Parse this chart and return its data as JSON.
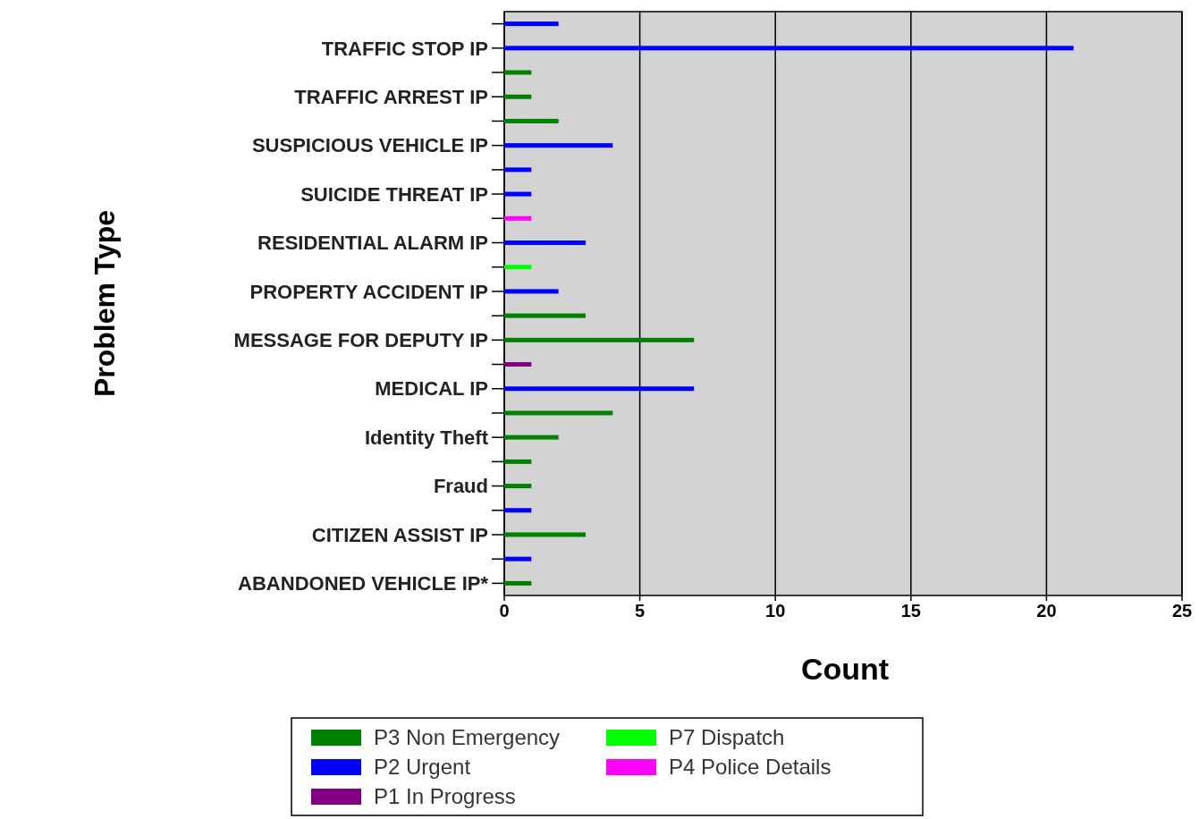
{
  "chart_data": {
    "type": "bar",
    "orientation": "horizontal",
    "xlabel": "Count",
    "ylabel": "Problem Type",
    "categories": [
      null,
      "TRAFFIC STOP IP",
      null,
      "TRAFFIC ARREST IP",
      null,
      "SUSPICIOUS VEHICLE IP",
      null,
      "SUICIDE THREAT IP",
      null,
      "RESIDENTIAL ALARM IP",
      null,
      "PROPERTY ACCIDENT IP",
      null,
      "MESSAGE FOR DEPUTY IP",
      null,
      "MEDICAL IP",
      null,
      "Identity Theft",
      null,
      "Fraud",
      null,
      "CITIZEN ASSIST IP",
      null,
      "ABANDONED VEHICLE IP*"
    ],
    "series": [
      {
        "name": "P3 Non Emergency",
        "color": "#008000",
        "values": [
          null,
          null,
          1,
          1,
          2,
          null,
          null,
          null,
          null,
          null,
          null,
          null,
          3,
          7,
          null,
          null,
          4,
          2,
          1,
          1,
          null,
          3,
          null,
          1
        ]
      },
      {
        "name": "P2 Urgent",
        "color": "#0000ff",
        "values": [
          2,
          21,
          null,
          null,
          null,
          4,
          1,
          1,
          null,
          3,
          null,
          2,
          null,
          null,
          null,
          7,
          null,
          null,
          null,
          null,
          1,
          null,
          1,
          null
        ]
      },
      {
        "name": "P1 In Progress",
        "color": "#800080",
        "values": [
          null,
          null,
          null,
          null,
          null,
          null,
          null,
          null,
          null,
          null,
          null,
          null,
          null,
          null,
          1,
          null,
          null,
          null,
          null,
          null,
          null,
          null,
          null,
          null
        ]
      },
      {
        "name": "P7 Dispatch",
        "color": "#00ff00",
        "values": [
          null,
          null,
          null,
          null,
          null,
          null,
          null,
          null,
          null,
          null,
          1,
          null,
          null,
          null,
          null,
          null,
          null,
          null,
          null,
          null,
          null,
          null,
          null,
          null
        ]
      },
      {
        "name": "P4 Police Details",
        "color": "#ff00ff",
        "values": [
          null,
          null,
          null,
          null,
          null,
          null,
          null,
          null,
          1,
          null,
          null,
          null,
          null,
          null,
          null,
          null,
          null,
          null,
          null,
          null,
          null,
          null,
          null,
          null
        ]
      }
    ],
    "xlim": [
      0,
      25
    ],
    "xticks": [
      0,
      5,
      10,
      15,
      20,
      25
    ],
    "grid": "x",
    "legend": "bottom"
  }
}
